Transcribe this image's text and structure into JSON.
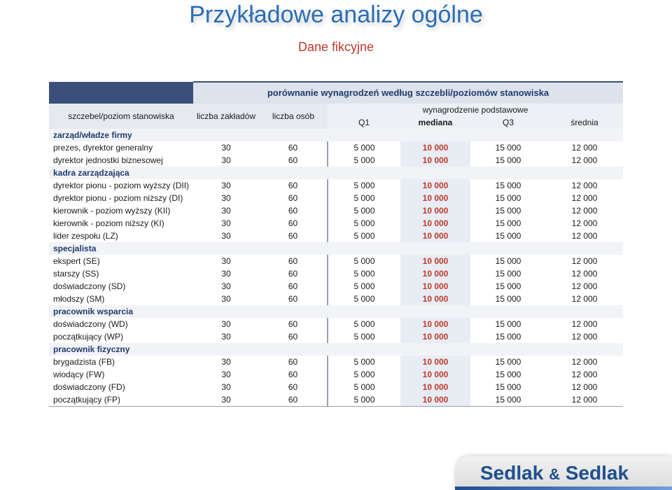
{
  "page": {
    "title": "Przykładowe analizy ogólne",
    "subtitle": "Dane fikcyjne"
  },
  "table": {
    "title": "porównanie wynagrodzeń według szczebli/poziomów stanowiska",
    "headers": {
      "position": "szczebel/poziom stanowiska",
      "companies": "liczba zakładów",
      "people": "liczba osób",
      "salary_group": "wynagrodzenie podstawowe",
      "q1": "Q1",
      "median": "mediana",
      "q3": "Q3",
      "mean": "średnia"
    },
    "groups": [
      {
        "label": "zarząd/władze firmy",
        "rows": [
          {
            "label": "prezes, dyrektor generalny",
            "companies": "30",
            "people": "60",
            "q1": "5 000",
            "median": "10 000",
            "q3": "15 000",
            "mean": "12 000"
          },
          {
            "label": "dyrektor jednostki biznesowej",
            "companies": "30",
            "people": "60",
            "q1": "5 000",
            "median": "10 000",
            "q3": "15 000",
            "mean": "12 000"
          }
        ]
      },
      {
        "label": "kadra zarządzająca",
        "rows": [
          {
            "label": "dyrektor pionu - poziom wyższy (DII)",
            "companies": "30",
            "people": "60",
            "q1": "5 000",
            "median": "10 000",
            "q3": "15 000",
            "mean": "12 000"
          },
          {
            "label": "dyrektor pionu - poziom niższy (DI)",
            "companies": "30",
            "people": "60",
            "q1": "5 000",
            "median": "10 000",
            "q3": "15 000",
            "mean": "12 000"
          },
          {
            "label": "kierownik - poziom wyższy (KII)",
            "companies": "30",
            "people": "60",
            "q1": "5 000",
            "median": "10 000",
            "q3": "15 000",
            "mean": "12 000"
          },
          {
            "label": "kierownik - poziom niższy (KI)",
            "companies": "30",
            "people": "60",
            "q1": "5 000",
            "median": "10 000",
            "q3": "15 000",
            "mean": "12 000"
          },
          {
            "label": "lider zespołu (LZ)",
            "companies": "30",
            "people": "60",
            "q1": "5 000",
            "median": "10 000",
            "q3": "15 000",
            "mean": "12 000"
          }
        ]
      },
      {
        "label": "specjalista",
        "rows": [
          {
            "label": "ekspert (SE)",
            "companies": "30",
            "people": "60",
            "q1": "5 000",
            "median": "10 000",
            "q3": "15 000",
            "mean": "12 000"
          },
          {
            "label": "starszy (SS)",
            "companies": "30",
            "people": "60",
            "q1": "5 000",
            "median": "10 000",
            "q3": "15 000",
            "mean": "12 000"
          },
          {
            "label": "doświadczony (SD)",
            "companies": "30",
            "people": "60",
            "q1": "5 000",
            "median": "10 000",
            "q3": "15 000",
            "mean": "12 000"
          },
          {
            "label": "młodszy (SM)",
            "companies": "30",
            "people": "60",
            "q1": "5 000",
            "median": "10 000",
            "q3": "15 000",
            "mean": "12 000"
          }
        ]
      },
      {
        "label": "pracownik wsparcia",
        "rows": [
          {
            "label": "doświadczony (WD)",
            "companies": "30",
            "people": "60",
            "q1": "5 000",
            "median": "10 000",
            "q3": "15 000",
            "mean": "12 000"
          },
          {
            "label": "początkujący (WP)",
            "companies": "30",
            "people": "60",
            "q1": "5 000",
            "median": "10 000",
            "q3": "15 000",
            "mean": "12 000"
          }
        ]
      },
      {
        "label": "pracownik fizyczny",
        "rows": [
          {
            "label": "brygadzista (FB)",
            "companies": "30",
            "people": "60",
            "q1": "5 000",
            "median": "10 000",
            "q3": "15 000",
            "mean": "12 000"
          },
          {
            "label": "wiodący (FW)",
            "companies": "30",
            "people": "60",
            "q1": "5 000",
            "median": "10 000",
            "q3": "15 000",
            "mean": "12 000"
          },
          {
            "label": "doświadczony (FD)",
            "companies": "30",
            "people": "60",
            "q1": "5 000",
            "median": "10 000",
            "q3": "15 000",
            "mean": "12 000"
          },
          {
            "label": "początkujący (FP)",
            "companies": "30",
            "people": "60",
            "q1": "5 000",
            "median": "10 000",
            "q3": "15 000",
            "mean": "12 000"
          }
        ]
      }
    ]
  },
  "logo": {
    "name_left": "Sedlak",
    "amp": "&",
    "name_right": "Sedlak"
  },
  "colors": {
    "title": "#2a6db4",
    "subtitle": "#c0392b",
    "median": "#c0392b",
    "group_label": "#1f3b6e",
    "logo": "#1e4f8c"
  }
}
